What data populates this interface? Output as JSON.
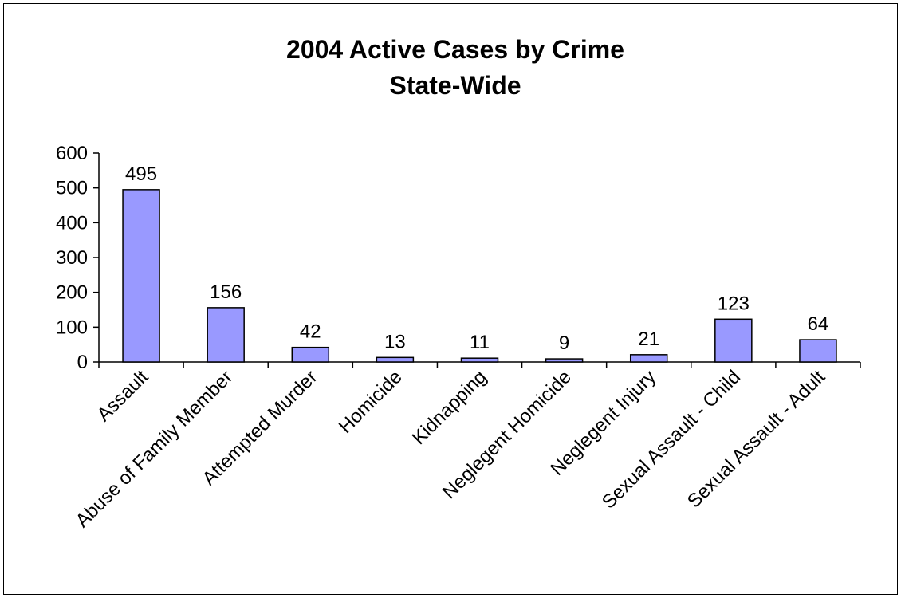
{
  "chart_data": {
    "type": "bar",
    "title": [
      "2004 Active Cases by Crime",
      "State-Wide"
    ],
    "categories": [
      "Assault",
      "Abuse of Family Member",
      "Attempted Murder",
      "Homicide",
      "Kidnapping",
      "Neglegent Homicide",
      "Neglegent Injury",
      "Sexual Assault - Child",
      "Sexual Assault - Adult"
    ],
    "values": [
      495,
      156,
      42,
      13,
      11,
      9,
      21,
      123,
      64
    ],
    "data_labels": [
      "495",
      "156",
      "42",
      "13",
      "11",
      "9",
      "21",
      "123",
      "64"
    ],
    "ylim": [
      0,
      600
    ],
    "yticks": [
      0,
      100,
      200,
      300,
      400,
      500,
      600
    ],
    "ytick_labels": [
      "0",
      "100",
      "200",
      "300",
      "400",
      "500",
      "600"
    ],
    "xlabel": "",
    "ylabel": "",
    "bar_color": "#9999ff",
    "grid": false,
    "legend": "none"
  }
}
